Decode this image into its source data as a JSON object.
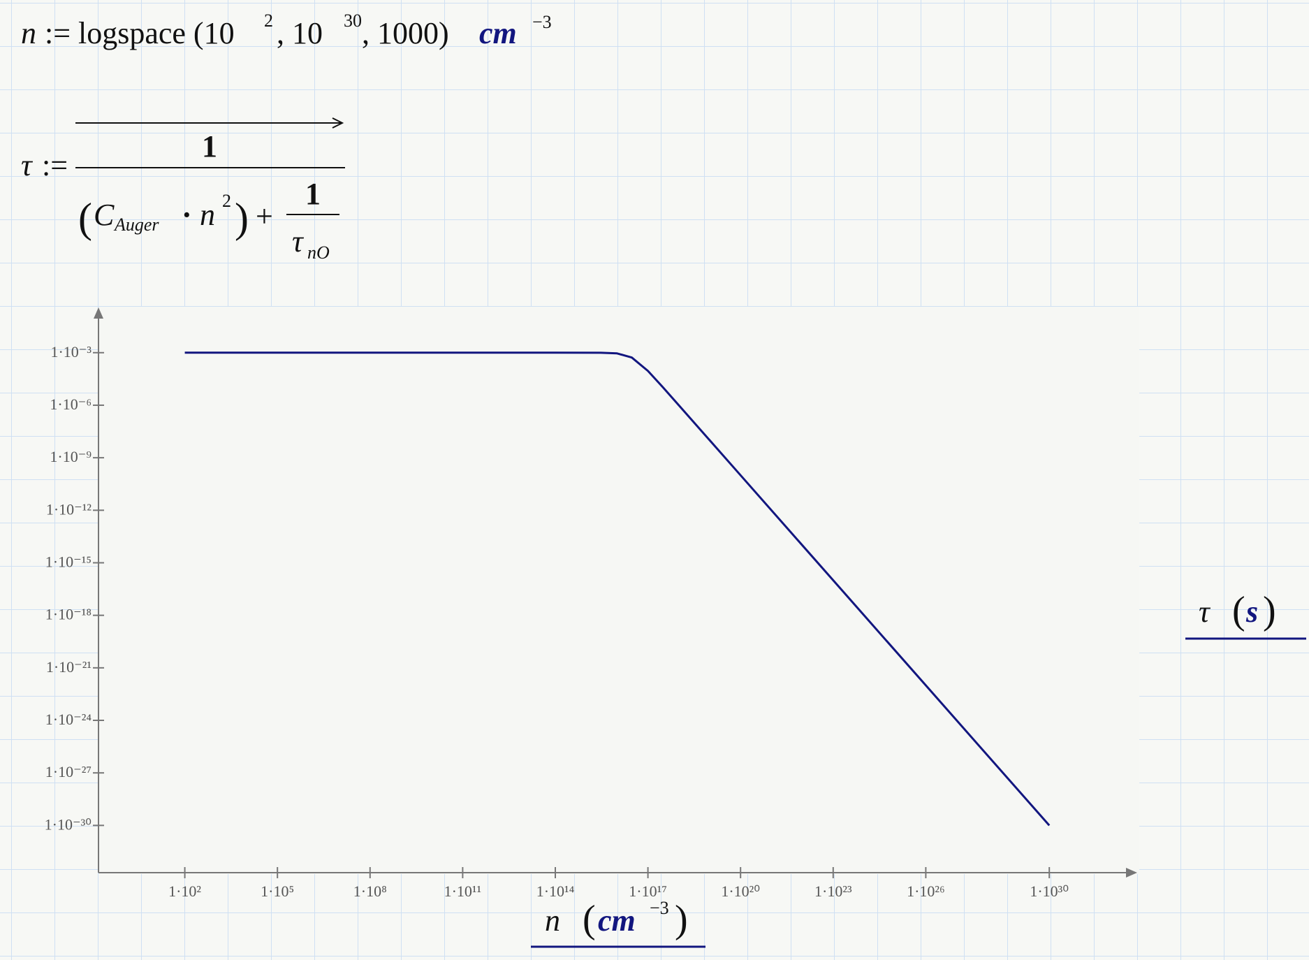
{
  "equations": [
    {
      "lhs": "n",
      "op": ":=",
      "part1": "logspace (10",
      "exp1": "2",
      "part2": ", 10",
      "exp2": "30",
      "part3": ", 1000)",
      "unit": "cm",
      "unit_exp": "−3"
    },
    {
      "lhs": "τ",
      "op": ":=",
      "numerator": "1",
      "open": "(",
      "c": "C",
      "c_sub": "Auger",
      "dot": "·",
      "n": "n",
      "n_exp": "2",
      "close": ")",
      "plus": "+",
      "inner_numerator": "1",
      "tau": "τ",
      "tau_sub": "nO"
    }
  ],
  "chart_data": {
    "type": "line",
    "x_title": {
      "symbol": "n",
      "open": "(",
      "unit": "cm",
      "unit_exp": "−3",
      "close": ")"
    },
    "y_title": {
      "symbol": "τ",
      "open": "(",
      "unit": "s",
      "close": ")"
    },
    "log_x": true,
    "log_y": true,
    "x": [
      100.0,
      100000.0,
      100000000.0,
      100000000000.0,
      100000000000000.0,
      3000000000000000.0,
      1e+16,
      3e+16,
      1e+17,
      3e+17,
      1e+18,
      1e+20,
      1e+23,
      1e+26,
      1e+30
    ],
    "series": [
      {
        "name": "τ",
        "color": "#12167f",
        "values": [
          0.001,
          0.001,
          0.001,
          0.001,
          0.001,
          0.00099,
          0.00091,
          0.00053,
          9.1e-05,
          1.1e-05,
          1e-06,
          1e-10,
          1e-16,
          1e-22,
          1e-30
        ]
      }
    ],
    "xlim": [
      0.16,
      6e+32
    ],
    "ylim": [
      2e-33,
      0.32
    ],
    "xticks": [
      {
        "value": 100.0,
        "label": "1·10²"
      },
      {
        "value": 100000.0,
        "label": "1·10⁵"
      },
      {
        "value": 100000000.0,
        "label": "1·10⁸"
      },
      {
        "value": 100000000000.0,
        "label": "1·10¹¹"
      },
      {
        "value": 100000000000000.0,
        "label": "1·10¹⁴"
      },
      {
        "value": 1e+17,
        "label": "1·10¹⁷"
      },
      {
        "value": 1e+20,
        "label": "1·10²⁰"
      },
      {
        "value": 1e+23,
        "label": "1·10²³"
      },
      {
        "value": 1e+26,
        "label": "1·10²⁶"
      },
      {
        "value": 1e+30,
        "label": "1·10³⁰"
      }
    ],
    "yticks": [
      {
        "value": 0.001,
        "label": "1·10⁻³"
      },
      {
        "value": 1e-06,
        "label": "1·10⁻⁶"
      },
      {
        "value": 1e-09,
        "label": "1·10⁻⁹"
      },
      {
        "value": 1e-12,
        "label": "1·10⁻¹²"
      },
      {
        "value": 1e-15,
        "label": "1·10⁻¹⁵"
      },
      {
        "value": 1e-18,
        "label": "1·10⁻¹⁸"
      },
      {
        "value": 1e-21,
        "label": "1·10⁻²¹"
      },
      {
        "value": 1e-24,
        "label": "1·10⁻²⁴"
      },
      {
        "value": 1e-27,
        "label": "1·10⁻²⁷"
      },
      {
        "value": 1e-30,
        "label": "1·10⁻³⁰"
      }
    ]
  }
}
